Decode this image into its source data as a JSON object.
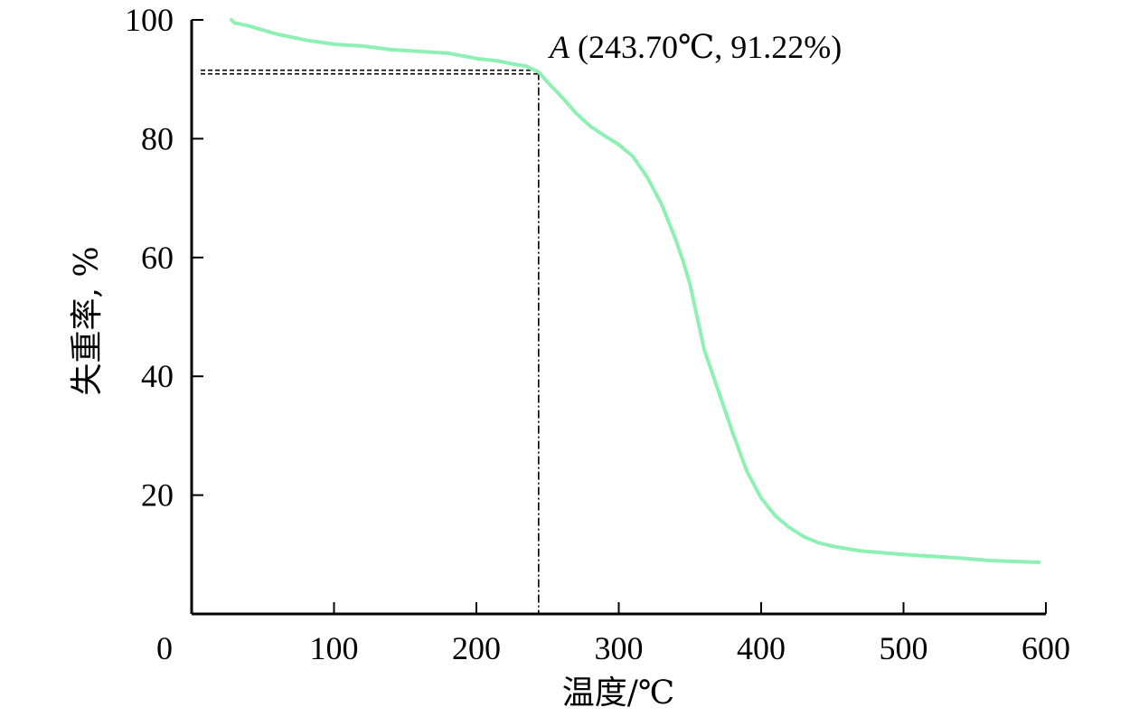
{
  "chart_data": {
    "type": "line",
    "xlabel": "温度/℃",
    "ylabel": "失重率, %",
    "xlim": [
      0,
      600
    ],
    "ylim": [
      0,
      100
    ],
    "xticks": [
      0,
      100,
      200,
      300,
      400,
      500,
      600
    ],
    "yticks": [
      20,
      40,
      60,
      80,
      100
    ],
    "xtick_labels": [
      "0",
      "100",
      "200",
      "300",
      "400",
      "500",
      "600"
    ],
    "ytick_labels": [
      "20",
      "40",
      "60",
      "80",
      "100"
    ],
    "grid": false,
    "colors": {
      "line": "#8ef0b4",
      "axis": "#000000",
      "guide": "#000000"
    },
    "series": [
      {
        "x": [
          28,
          30,
          40,
          60,
          80,
          100,
          120,
          140,
          160,
          180,
          200,
          215,
          225,
          235,
          243.7,
          250,
          260,
          270,
          280,
          290,
          300,
          310,
          320,
          330,
          340,
          345,
          350,
          355,
          360,
          370,
          380,
          390,
          400,
          410,
          420,
          430,
          440,
          450,
          460,
          470,
          480,
          500,
          520,
          540,
          560,
          580,
          595
        ],
        "y": [
          100,
          99.5,
          99,
          97.6,
          96.6,
          95.9,
          95.6,
          95,
          94.7,
          94.4,
          93.5,
          93.1,
          92.6,
          92.2,
          91.22,
          89.5,
          87,
          84.3,
          82.1,
          80.5,
          79,
          77,
          73.5,
          69,
          63,
          59.5,
          55.5,
          50,
          44.5,
          37.5,
          30.5,
          24,
          19.5,
          16.5,
          14.5,
          13,
          12,
          11.4,
          11,
          10.6,
          10.4,
          10,
          9.7,
          9.4,
          9,
          8.8,
          8.7
        ]
      }
    ],
    "annotations": [
      {
        "label": "A",
        "text": " (243.70℃, 91.22%)",
        "x": 243.7,
        "y": 91.22
      }
    ]
  }
}
